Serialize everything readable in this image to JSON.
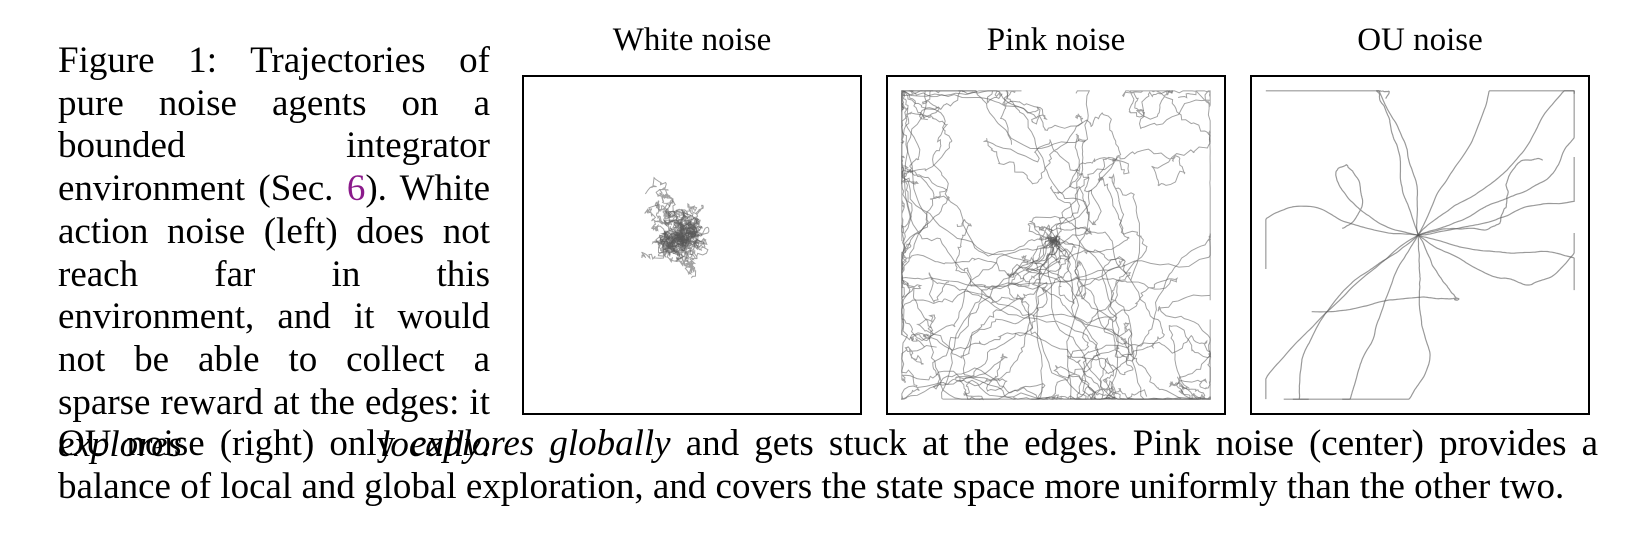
{
  "caption": {
    "label": "Figure 1:",
    "part1": "Trajectories of pure noise agents on a bounded integrator environment (Sec.",
    "ref": "6",
    "part2": "). White action noise (left) does not reach far in this environment, and it would not be able to collect a sparse reward at the edges: it",
    "em1": "explores locally",
    "part3": ". OU noise (right) only",
    "em2": "explores globally",
    "part4": "and gets stuck at the edges. Pink noise (center) provides a balance of local and global exploration, and covers the state space more uniformly than the other two."
  },
  "panels": [
    {
      "title": "White noise",
      "style": "local"
    },
    {
      "title": "Pink noise",
      "style": "mixed"
    },
    {
      "title": "OU noise",
      "style": "global"
    }
  ],
  "colors": {
    "trajectory": "#555555",
    "reference": "#8b1a8b"
  }
}
